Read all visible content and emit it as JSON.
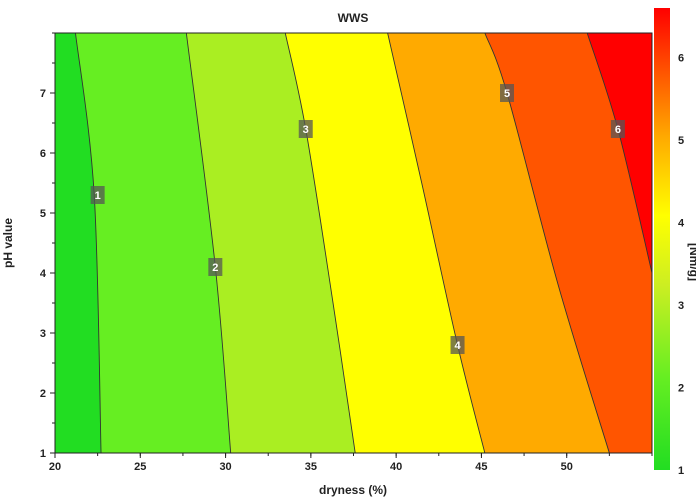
{
  "chart_data": {
    "type": "heatmap",
    "subtype": "contour",
    "title": "WWS",
    "xlabel": "dryness (%)",
    "ylabel": "pH value",
    "colorbar_label": "[Nm/g]",
    "xlim": [
      20,
      55
    ],
    "ylim": [
      1,
      8
    ],
    "xticks": [
      20,
      25,
      30,
      35,
      40,
      45,
      50
    ],
    "yticks": [
      1,
      2,
      3,
      4,
      5,
      6,
      7
    ],
    "colorbar_range": [
      1,
      6.6
    ],
    "colorbar_ticks": [
      1,
      2,
      3,
      4,
      5,
      6
    ],
    "colors": [
      "#22dd22",
      "#66ee22",
      "#aaee22",
      "#ffff00",
      "#ffaa00",
      "#ff5500",
      "#ff0000"
    ],
    "contours": [
      {
        "level": 1,
        "label": "1",
        "points": [
          [
            22.7,
            1
          ],
          [
            22.3,
            5.3
          ],
          [
            21.2,
            8
          ]
        ],
        "label_at": [
          22.5,
          5.3
        ]
      },
      {
        "level": 2,
        "label": "2",
        "points": [
          [
            30.3,
            1
          ],
          [
            29.4,
            4.1
          ],
          [
            27.7,
            8
          ]
        ],
        "label_at": [
          29.4,
          4.1
        ]
      },
      {
        "level": 3,
        "label": "3",
        "points": [
          [
            37.6,
            1
          ],
          [
            36.3,
            3.5
          ],
          [
            34.7,
            6.4
          ],
          [
            33.5,
            8
          ]
        ],
        "label_at": [
          34.7,
          6.4
        ]
      },
      {
        "level": 4,
        "label": "4",
        "points": [
          [
            45.2,
            1
          ],
          [
            43.6,
            2.8
          ],
          [
            41.5,
            5.5
          ],
          [
            39.5,
            8
          ]
        ],
        "label_at": [
          43.6,
          2.8
        ]
      },
      {
        "level": 5,
        "label": "5",
        "points": [
          [
            52.5,
            1
          ],
          [
            49.5,
            3.8
          ],
          [
            46.5,
            7.0
          ],
          [
            45.2,
            8
          ]
        ],
        "label_at": [
          46.5,
          7.0
        ]
      },
      {
        "level": 6,
        "label": "6",
        "points": [
          [
            55,
            4.0
          ],
          [
            53,
            6.4
          ],
          [
            51.2,
            8
          ]
        ],
        "label_at": [
          53,
          6.4
        ]
      }
    ]
  }
}
